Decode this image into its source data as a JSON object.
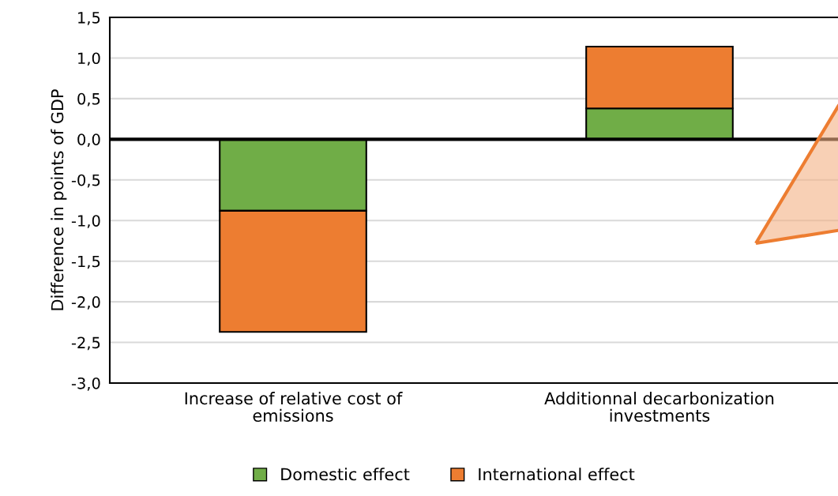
{
  "chart_data": {
    "type": "bar",
    "stacked": true,
    "ylabel": "Difference in points of GDP",
    "categories": [
      "Increase of relative cost of\nemissions",
      "Additionnal decarbonization\ninvestments"
    ],
    "series": [
      {
        "name": "Domestic effect",
        "color": "#70ad47",
        "values": [
          -0.88,
          0.38
        ]
      },
      {
        "name": "International effect",
        "color": "#ed7d31",
        "values": [
          -1.49,
          0.76
        ]
      }
    ],
    "ylim": [
      -3,
      1.5
    ],
    "yticks": [
      {
        "value": -3,
        "label": "-3,0"
      },
      {
        "value": -2.5,
        "label": "-2,5"
      },
      {
        "value": -2,
        "label": "-2,0"
      },
      {
        "value": -1.5,
        "label": "-1,5"
      },
      {
        "value": -1,
        "label": "-1,0"
      },
      {
        "value": -0.5,
        "label": "-0,5"
      },
      {
        "value": 0,
        "label": "0,0"
      },
      {
        "value": 0.5,
        "label": "0,5"
      },
      {
        "value": 1,
        "label": "1,0"
      },
      {
        "value": 1.5,
        "label": "1,5"
      }
    ],
    "grid": "y",
    "legend": "bottom",
    "ref_lines": [
      {
        "axis": "y",
        "value": 0,
        "color": "#000000"
      }
    ]
  }
}
